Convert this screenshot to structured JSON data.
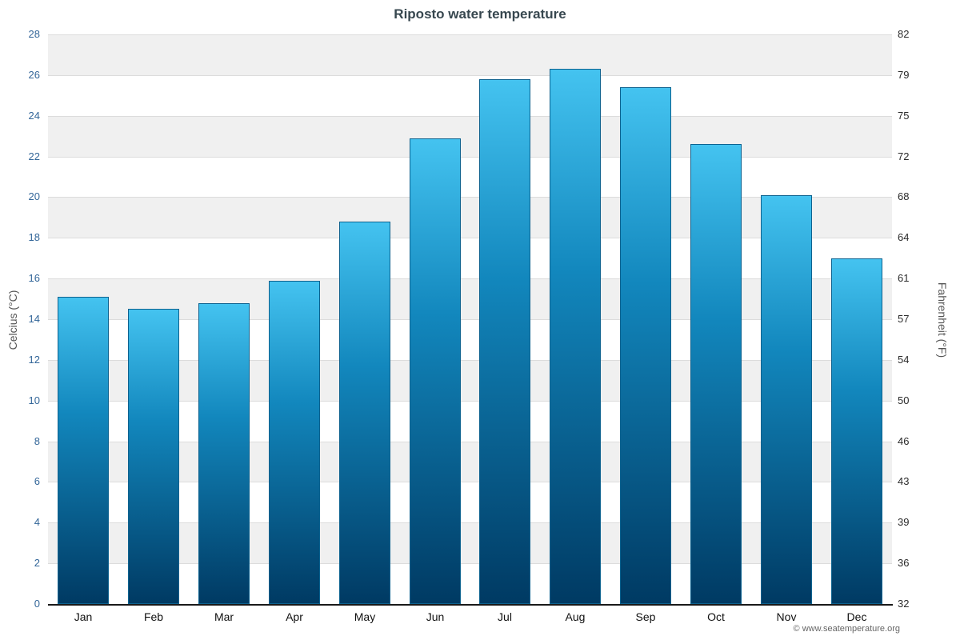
{
  "chart_data": {
    "type": "bar",
    "title": "Riposto water temperature",
    "ylabel_left": "Celcius (°C)",
    "ylabel_right": "Fahrenheit (°F)",
    "categories": [
      "Jan",
      "Feb",
      "Mar",
      "Apr",
      "May",
      "Jun",
      "Jul",
      "Aug",
      "Sep",
      "Oct",
      "Nov",
      "Dec"
    ],
    "values": [
      15.1,
      14.5,
      14.8,
      15.9,
      18.8,
      22.9,
      25.8,
      26.3,
      25.4,
      22.6,
      20.1,
      17.0
    ],
    "ylim": [
      0,
      28
    ],
    "yticks_celsius": [
      0,
      2,
      4,
      6,
      8,
      10,
      12,
      14,
      16,
      18,
      20,
      22,
      24,
      26,
      28
    ],
    "yticks_fahrenheit": [
      "32",
      "36",
      "39",
      "43",
      "46",
      "50",
      "54",
      "57",
      "61",
      "64",
      "68",
      "72",
      "75",
      "79",
      "82"
    ],
    "grid": true,
    "legend": "none"
  },
  "footer": {
    "copyright": "© www.seatemperature.org"
  },
  "colors": {
    "bar_top": "#44c3f0",
    "bar_bottom": "#003a63",
    "bar_border": "#0d628f",
    "band_gray": "#f0f0f0",
    "gridline": "#dcdcdc",
    "left_tick_text": "#336699"
  }
}
